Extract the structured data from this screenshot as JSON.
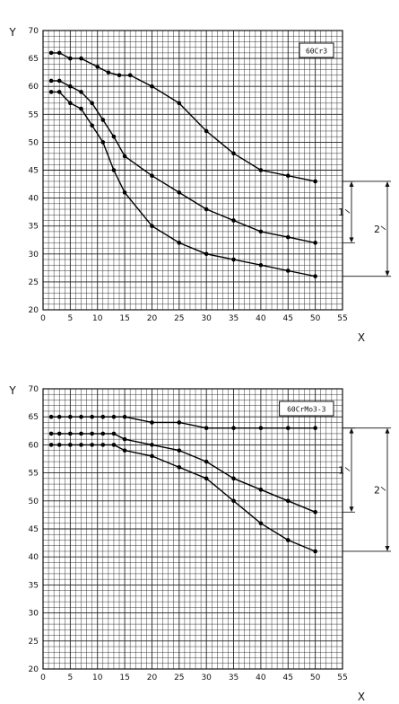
{
  "chart_data": [
    {
      "type": "line",
      "title": "",
      "box_label": "60Cr3",
      "xlabel": "X",
      "ylabel": "Y",
      "xlim": [
        0,
        55
      ],
      "ylim": [
        20,
        70
      ],
      "x_ticks": [
        "0",
        "5",
        "10",
        "15",
        "20",
        "25",
        "30",
        "35",
        "40",
        "45",
        "50",
        "55"
      ],
      "y_ticks": [
        "20",
        "25",
        "30",
        "35",
        "40",
        "45",
        "50",
        "55",
        "60",
        "65",
        "70"
      ],
      "grid": true,
      "series": [
        {
          "x": [
            1.5,
            3,
            5,
            7,
            10,
            12,
            14,
            16,
            20,
            25,
            30,
            35,
            40,
            45,
            50
          ],
          "y": [
            66,
            66,
            65,
            65,
            63.5,
            62.5,
            62,
            62,
            60,
            57,
            52,
            48,
            45,
            44,
            43
          ]
        },
        {
          "x": [
            1.5,
            3,
            5,
            7,
            9,
            11,
            13,
            15,
            20,
            25,
            30,
            35,
            40,
            45,
            50
          ],
          "y": [
            61,
            61,
            60,
            59,
            57,
            54,
            51,
            47.5,
            44,
            41,
            38,
            36,
            34,
            33,
            32
          ]
        },
        {
          "x": [
            1.5,
            3,
            5,
            7,
            9,
            11,
            13,
            15,
            20,
            25,
            30,
            35,
            40,
            45,
            50
          ],
          "y": [
            59,
            59,
            57,
            56,
            53,
            50,
            45,
            41,
            35,
            32,
            30,
            29,
            28,
            27,
            26
          ]
        }
      ],
      "brackets": [
        {
          "label": "1",
          "from": 32,
          "to": 43
        },
        {
          "label": "2",
          "from": 26,
          "to": 43
        }
      ]
    },
    {
      "type": "line",
      "title": "",
      "box_label": "60CrMo3-3",
      "xlabel": "X",
      "ylabel": "Y",
      "xlim": [
        0,
        55
      ],
      "ylim": [
        20,
        70
      ],
      "x_ticks": [
        "0",
        "5",
        "10",
        "15",
        "20",
        "25",
        "30",
        "35",
        "40",
        "45",
        "50",
        "55"
      ],
      "y_ticks": [
        "20",
        "25",
        "30",
        "35",
        "40",
        "45",
        "50",
        "55",
        "60",
        "65",
        "70"
      ],
      "grid": true,
      "series": [
        {
          "x": [
            1.5,
            3,
            5,
            7,
            9,
            11,
            13,
            15,
            20,
            25,
            30,
            35,
            40,
            45,
            50
          ],
          "y": [
            65,
            65,
            65,
            65,
            65,
            65,
            65,
            65,
            64,
            64,
            63,
            63,
            63,
            63,
            63
          ]
        },
        {
          "x": [
            1.5,
            3,
            5,
            7,
            9,
            11,
            13,
            15,
            20,
            25,
            30,
            35,
            40,
            45,
            50
          ],
          "y": [
            62,
            62,
            62,
            62,
            62,
            62,
            62,
            61,
            60,
            59,
            57,
            54,
            52,
            50,
            48
          ]
        },
        {
          "x": [
            1.5,
            3,
            5,
            7,
            9,
            11,
            13,
            15,
            20,
            25,
            30,
            35,
            40,
            45,
            50
          ],
          "y": [
            60,
            60,
            60,
            60,
            60,
            60,
            60,
            59,
            58,
            56,
            54,
            50,
            46,
            43,
            41
          ]
        }
      ],
      "brackets": [
        {
          "label": "1",
          "from": 48,
          "to": 63
        },
        {
          "label": "2",
          "from": 41,
          "to": 63
        }
      ]
    }
  ]
}
